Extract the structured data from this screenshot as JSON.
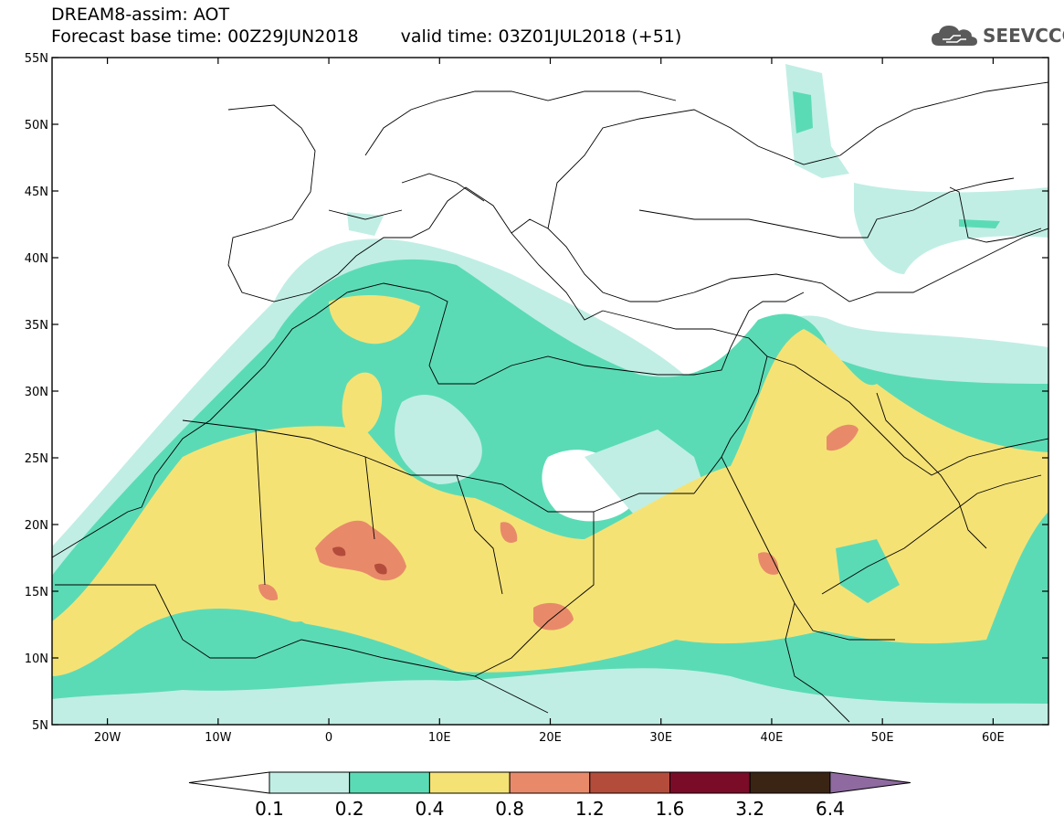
{
  "header": {
    "title": "DREAM8-assim: AOT",
    "base_time_label": "Forecast base time: 00Z29JUN2018",
    "valid_time_label": "valid time: 03Z01JUL2018 (+51)"
  },
  "logo": {
    "text": "SEEVCCC",
    "icon": "cloud-icon"
  },
  "map": {
    "lon_range": [
      -25,
      65
    ],
    "lat_range": [
      5,
      55
    ],
    "lon_ticks": [
      {
        "lon": -20,
        "label": "20W"
      },
      {
        "lon": -10,
        "label": "10W"
      },
      {
        "lon": 0,
        "label": "0"
      },
      {
        "lon": 10,
        "label": "10E"
      },
      {
        "lon": 20,
        "label": "20E"
      },
      {
        "lon": 30,
        "label": "30E"
      },
      {
        "lon": 40,
        "label": "40E"
      },
      {
        "lon": 50,
        "label": "50E"
      },
      {
        "lon": 60,
        "label": "60E"
      }
    ],
    "lat_ticks": [
      {
        "lat": 5,
        "label": "5N"
      },
      {
        "lat": 10,
        "label": "10N"
      },
      {
        "lat": 15,
        "label": "15N"
      },
      {
        "lat": 20,
        "label": "20N"
      },
      {
        "lat": 25,
        "label": "25N"
      },
      {
        "lat": 30,
        "label": "30N"
      },
      {
        "lat": 35,
        "label": "35N"
      },
      {
        "lat": 40,
        "label": "40N"
      },
      {
        "lat": 45,
        "label": "45N"
      },
      {
        "lat": 50,
        "label": "50N"
      },
      {
        "lat": 55,
        "label": "55N"
      }
    ]
  },
  "legend": {
    "labels": [
      "0.1",
      "0.2",
      "0.4",
      "0.8",
      "1.2",
      "1.6",
      "3.2",
      "6.4"
    ],
    "colors": [
      "#ffffff",
      "#c0eee4",
      "#5bdbb5",
      "#f5e275",
      "#e88a6a",
      "#b44c3c",
      "#7a0c28",
      "#3a2414",
      "#8e6aa0"
    ]
  }
}
